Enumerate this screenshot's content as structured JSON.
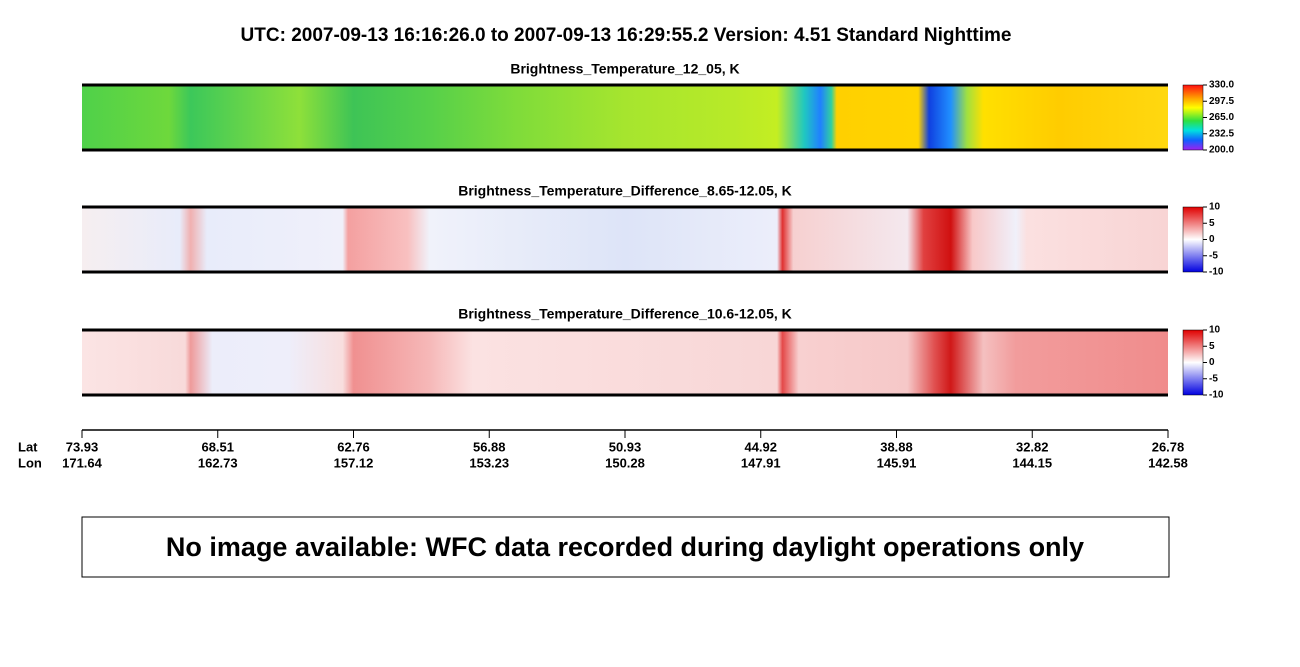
{
  "header": {
    "title": "UTC:  2007-09-13   16:16:26.0  to  2007-09-13   16:29:55.2    Version: 4.51  Standard Nighttime"
  },
  "panels": [
    {
      "title": "Brightness_Temperature_12_05, K",
      "colorbar_ticks": [
        "330.0",
        "297.5",
        "265.0",
        "232.5",
        "200.0"
      ]
    },
    {
      "title": "Brightness_Temperature_Difference_8.65-12.05, K",
      "colorbar_ticks": [
        "10",
        "5",
        "0",
        "-5",
        "-10"
      ]
    },
    {
      "title": "Brightness_Temperature_Difference_10.6-12.05, K",
      "colorbar_ticks": [
        "10",
        "5",
        "0",
        "-5",
        "-10"
      ]
    }
  ],
  "axis": {
    "lat_label": "Lat",
    "lon_label": "Lon",
    "lat": [
      "73.93",
      "68.51",
      "62.76",
      "56.88",
      "50.93",
      "44.92",
      "38.88",
      "32.82",
      "26.78"
    ],
    "lon": [
      "171.64",
      "162.73",
      "157.12",
      "153.23",
      "150.28",
      "147.91",
      "145.91",
      "144.15",
      "142.58"
    ]
  },
  "message": "No image available: WFC data recorded during daylight operations only"
}
